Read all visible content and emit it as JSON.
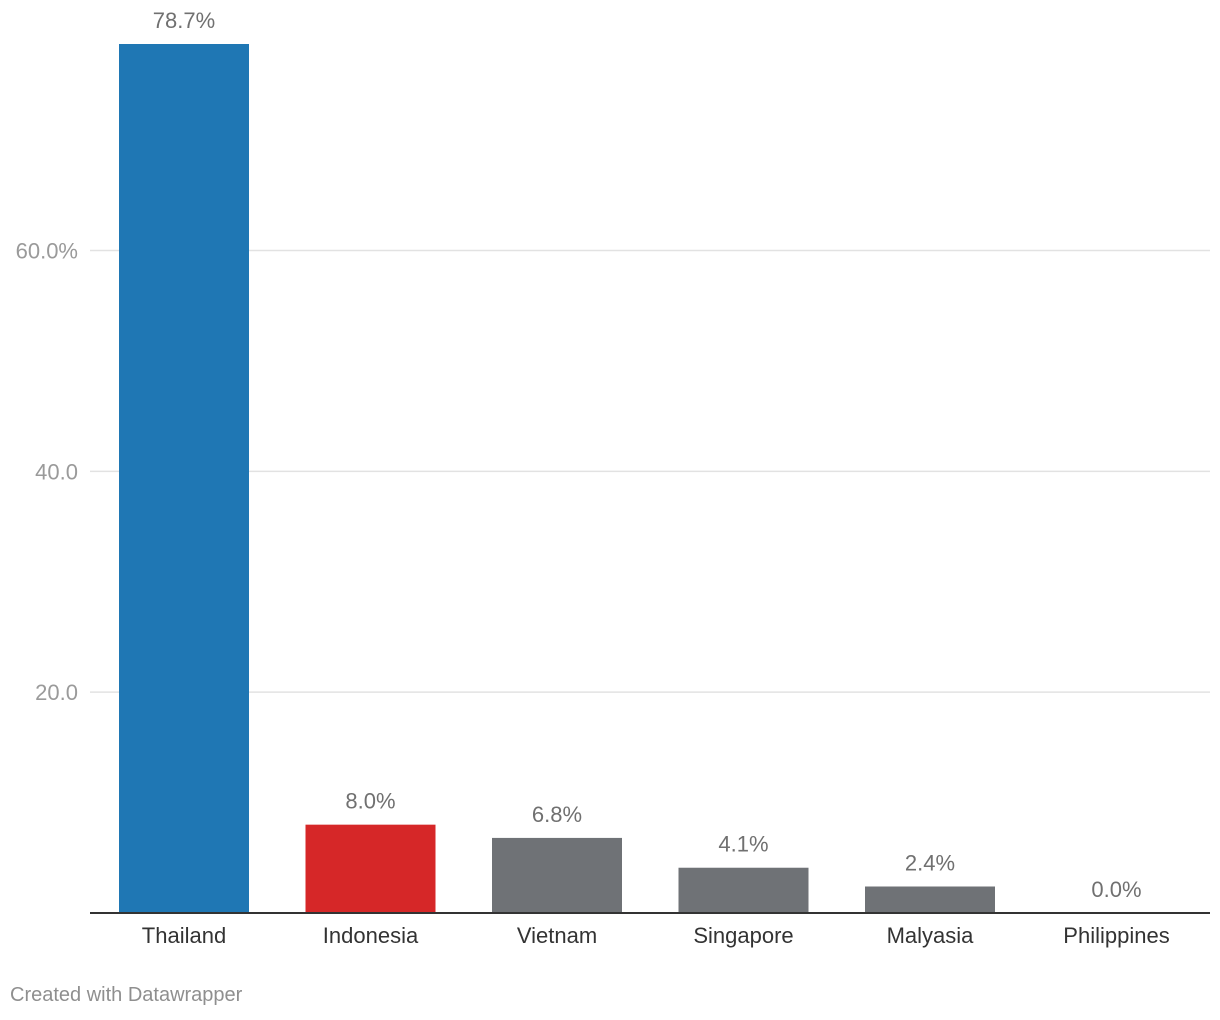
{
  "chart_data": {
    "type": "bar",
    "title": "",
    "xlabel": "",
    "ylabel": "",
    "categories": [
      "Thailand",
      "Indonesia",
      "Vietnam",
      "Singapore",
      "Malyasia",
      "Philippines"
    ],
    "values": [
      78.7,
      8.0,
      6.8,
      4.1,
      2.4,
      0.0
    ],
    "value_labels": [
      "78.7%",
      "8.0%",
      "6.8%",
      "4.1%",
      "2.4%",
      "0.0%"
    ],
    "colors": [
      "#1f77b4",
      "#d62728",
      "#6f7276",
      "#6f7276",
      "#6f7276",
      "#6f7276"
    ],
    "y_ticks": [
      {
        "value": 20,
        "label": "20.0"
      },
      {
        "value": 40,
        "label": "40.0"
      },
      {
        "value": 60,
        "label": "60.0%"
      }
    ],
    "ylim": [
      0,
      78.7
    ],
    "grid": true,
    "legend": "none"
  },
  "credit": "Created with Datawrapper"
}
